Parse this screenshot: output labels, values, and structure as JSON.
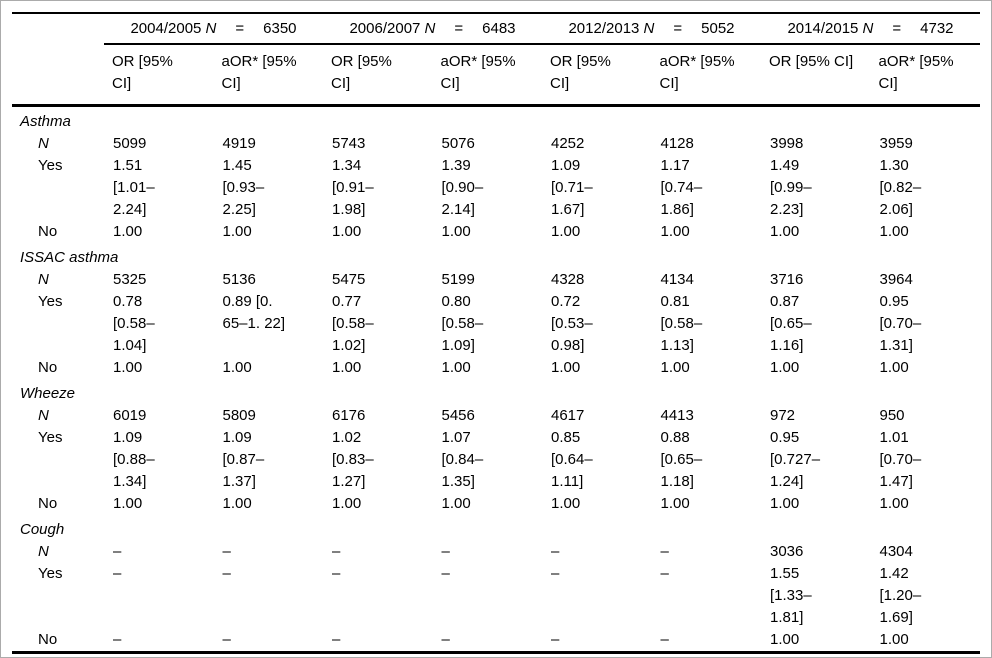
{
  "table": {
    "year_groups": [
      {
        "year": "2004/2005",
        "n_label": "N",
        "eq": "=",
        "n": "6350",
        "or_header": "OR [95%\nCI]",
        "aor_header": "aOR* [95%\nCI]"
      },
      {
        "year": "2006/2007",
        "n_label": "N",
        "eq": "=",
        "n": "6483",
        "or_header": "OR [95%\nCI]",
        "aor_header": "aOR* [95%\nCI]"
      },
      {
        "year": "2012/2013",
        "n_label": "N",
        "eq": "=",
        "n": "5052",
        "or_header": "OR [95%\nCI]",
        "aor_header": "aOR* [95%\nCI]"
      },
      {
        "year": "2014/2015",
        "n_label": "N",
        "eq": "=",
        "n": "4732",
        "or_header": "OR [95% CI]",
        "aor_header": "aOR* [95%\nCI]"
      }
    ],
    "sections": [
      {
        "label": "Asthma",
        "rows": [
          {
            "label": "N",
            "italic": true,
            "cells": [
              "5099",
              "4919",
              "5743",
              "5076",
              "4252",
              "4128",
              "3998",
              "3959"
            ]
          },
          {
            "label": "Yes",
            "italic": false,
            "cells": [
              "1.51\n[1.01–\n2.24]",
              "1.45\n[0.93–\n2.25]",
              "1.34\n[0.91–\n1.98]",
              "1.39\n[0.90–\n2.14]",
              "1.09\n[0.71–\n1.67]",
              "1.17\n[0.74–\n1.86]",
              "1.49\n[0.99–\n2.23]",
              "1.30\n[0.82–\n2.06]"
            ]
          },
          {
            "label": "No",
            "italic": false,
            "cells": [
              "1.00",
              "1.00",
              "1.00",
              "1.00",
              "1.00",
              "1.00",
              "1.00",
              "1.00"
            ]
          }
        ]
      },
      {
        "label": "ISSAC asthma",
        "rows": [
          {
            "label": "N",
            "italic": true,
            "cells": [
              "5325",
              "5136",
              "5475",
              "5199",
              "4328",
              "4134",
              "3716",
              "3964"
            ]
          },
          {
            "label": "Yes",
            "italic": false,
            "cells": [
              "0.78\n[0.58–\n1.04]",
              "0.89 [0.\n65–1. 22]",
              "0.77\n[0.58–\n1.02]",
              "0.80\n[0.58–\n1.09]",
              "0.72\n[0.53–\n0.98]",
              "0.81\n[0.58–\n1.13]",
              "0.87\n[0.65–\n1.16]",
              "0.95\n[0.70–\n1.31]"
            ]
          },
          {
            "label": "No",
            "italic": false,
            "cells": [
              "1.00",
              "1.00",
              "1.00",
              "1.00",
              "1.00",
              "1.00",
              "1.00",
              "1.00"
            ]
          }
        ]
      },
      {
        "label": "Wheeze",
        "rows": [
          {
            "label": "N",
            "italic": true,
            "cells": [
              "6019",
              "5809",
              "6176",
              "5456",
              "4617",
              "4413",
              "972",
              "950"
            ]
          },
          {
            "label": "Yes",
            "italic": false,
            "cells": [
              "1.09\n[0.88–\n1.34]",
              "1.09\n[0.87–\n1.37]",
              "1.02\n[0.83–\n1.27]",
              "1.07\n[0.84–\n1.35]",
              "0.85\n[0.64–\n1.11]",
              "0.88\n[0.65–\n1.18]",
              "0.95\n[0.727–\n1.24]",
              "1.01\n[0.70–\n1.47]"
            ]
          },
          {
            "label": "No",
            "italic": false,
            "cells": [
              "1.00",
              "1.00",
              "1.00",
              "1.00",
              "1.00",
              "1.00",
              "1.00",
              "1.00"
            ]
          }
        ]
      },
      {
        "label": "Cough",
        "rows": [
          {
            "label": "N",
            "italic": true,
            "cells": [
              "–",
              "–",
              "–",
              "–",
              "–",
              "–",
              "3036",
              "4304"
            ]
          },
          {
            "label": "Yes",
            "italic": false,
            "cells": [
              "–",
              "–",
              "–",
              "–",
              "–",
              "–",
              "1.55\n[1.33–\n1.81]",
              "1.42\n[1.20–\n1.69]"
            ]
          },
          {
            "label": "No",
            "italic": false,
            "cells": [
              "–",
              "–",
              "–",
              "–",
              "–",
              "–",
              "1.00",
              "1.00"
            ]
          }
        ]
      }
    ]
  }
}
